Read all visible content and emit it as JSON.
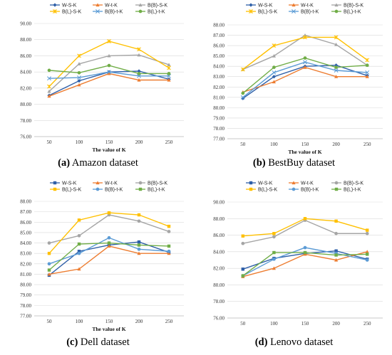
{
  "chart_data": [
    {
      "type": "line",
      "caption_label": "(a)",
      "caption_text": "Amazon dataset",
      "xlabel": "The value of K",
      "ylabel": "",
      "categories": [
        "50",
        "100",
        "150",
        "200",
        "250"
      ],
      "ylim": [
        76,
        90
      ],
      "yticks": [
        "76.00",
        "78.00",
        "80.00",
        "82.00",
        "84.00",
        "86.00",
        "88.00",
        "90.00"
      ],
      "legend_placement": "top",
      "grid": true,
      "series": [
        {
          "name": "W-S-K",
          "color": "#2e5fa8",
          "marker": "diamond",
          "values": [
            81.1,
            82.9,
            84.0,
            84.1,
            83.1
          ]
        },
        {
          "name": "W-t-K",
          "color": "#ed7d31",
          "marker": "triangle",
          "values": [
            81.0,
            82.4,
            83.8,
            83.0,
            83.0
          ]
        },
        {
          "name": "B(B)-S-K",
          "color": "#a5a5a5",
          "marker": "triangle",
          "values": [
            81.6,
            85.0,
            86.0,
            86.1,
            84.9
          ]
        },
        {
          "name": "B(L)-S-K",
          "color": "#ffc000",
          "marker": "star",
          "values": [
            82.2,
            86.0,
            87.8,
            86.8,
            84.5
          ]
        },
        {
          "name": "B(B)-t-K",
          "color": "#5b9bd5",
          "marker": "x",
          "values": [
            83.2,
            83.3,
            84.0,
            83.5,
            83.5
          ]
        },
        {
          "name": "B(L)-t-K",
          "color": "#70ad47",
          "marker": "circle",
          "values": [
            84.2,
            83.9,
            84.8,
            83.8,
            83.8
          ]
        }
      ]
    },
    {
      "type": "line",
      "caption_label": "(b)",
      "caption_text": "BestBuy dataset",
      "xlabel": "The value of K",
      "ylabel": "",
      "categories": [
        "50",
        "100",
        "150",
        "200",
        "250"
      ],
      "ylim": [
        77,
        88
      ],
      "yticks": [
        "77.00",
        "78.00",
        "79.00",
        "80.00",
        "81.00",
        "82.00",
        "83.00",
        "84.00",
        "85.00",
        "86.00",
        "87.00",
        "88.00"
      ],
      "legend_placement": "top",
      "grid": true,
      "series": [
        {
          "name": "W-S-K",
          "color": "#2e5fa8",
          "marker": "diamond",
          "values": [
            80.9,
            83.0,
            84.0,
            84.1,
            83.1
          ]
        },
        {
          "name": "W-t-K",
          "color": "#ed7d31",
          "marker": "triangle",
          "values": [
            81.5,
            82.5,
            83.9,
            83.0,
            83.0
          ]
        },
        {
          "name": "B(B)-S-K",
          "color": "#a5a5a5",
          "marker": "triangle",
          "values": [
            83.7,
            85.0,
            87.0,
            86.1,
            84.1
          ]
        },
        {
          "name": "B(L)-S-K",
          "color": "#ffc000",
          "marker": "star",
          "values": [
            83.7,
            86.0,
            86.8,
            86.8,
            84.6
          ]
        },
        {
          "name": "B(B)-t-K",
          "color": "#5b9bd5",
          "marker": "x",
          "values": [
            81.0,
            83.4,
            84.4,
            83.6,
            83.4
          ]
        },
        {
          "name": "B(L)-t-K",
          "color": "#70ad47",
          "marker": "circle",
          "values": [
            81.4,
            83.9,
            84.8,
            83.9,
            84.1
          ]
        }
      ]
    },
    {
      "type": "line",
      "caption_label": "(c)",
      "caption_text": "Dell dataset",
      "xlabel": "The value of K",
      "ylabel": "",
      "categories": [
        "50",
        "100",
        "150",
        "200",
        "250"
      ],
      "ylim": [
        77,
        88
      ],
      "yticks": [
        "77.00",
        "78.00",
        "79.00",
        "80.00",
        "81.00",
        "82.00",
        "83.00",
        "84.00",
        "85.00",
        "86.00",
        "87.00",
        "88.00"
      ],
      "legend_placement": "top",
      "grid": true,
      "series": [
        {
          "name": "W-S-K",
          "color": "#2e5fa8",
          "marker": "square",
          "values": [
            80.9,
            83.2,
            83.8,
            84.1,
            83.1
          ]
        },
        {
          "name": "W-t-K",
          "color": "#ed7d31",
          "marker": "triangle",
          "values": [
            81.0,
            81.5,
            83.7,
            83.0,
            83.0
          ]
        },
        {
          "name": "B(B)-S-K",
          "color": "#a5a5a5",
          "marker": "circle",
          "values": [
            84.0,
            84.7,
            86.7,
            86.1,
            85.1
          ]
        },
        {
          "name": "B(L)-S-K",
          "color": "#ffc000",
          "marker": "square",
          "values": [
            83.0,
            86.2,
            86.9,
            86.7,
            85.6
          ]
        },
        {
          "name": "B(B)-t-K",
          "color": "#5b9bd5",
          "marker": "circle",
          "values": [
            82.0,
            83.0,
            84.5,
            83.4,
            83.2
          ]
        },
        {
          "name": "B(L)-t-K",
          "color": "#70ad47",
          "marker": "square",
          "values": [
            81.4,
            83.9,
            84.0,
            83.8,
            83.7
          ]
        }
      ]
    },
    {
      "type": "line",
      "caption_label": "(d)",
      "caption_text": "Lenovo dataset",
      "xlabel": "",
      "ylabel": "",
      "categories": [
        "50",
        "100",
        "150",
        "200",
        "250"
      ],
      "ylim": [
        76,
        90
      ],
      "yticks": [
        "76.00",
        "78.00",
        "80.00",
        "82.00",
        "84.00",
        "86.00",
        "88.00",
        "90.00"
      ],
      "legend_placement": "top",
      "grid": true,
      "series": [
        {
          "name": "W-S-K",
          "color": "#2e5fa8",
          "marker": "square",
          "values": [
            81.9,
            83.2,
            83.8,
            84.1,
            83.1
          ]
        },
        {
          "name": "W-t-K",
          "color": "#ed7d31",
          "marker": "triangle",
          "values": [
            81.0,
            82.0,
            83.7,
            83.0,
            84.0
          ]
        },
        {
          "name": "B(B)-S-K",
          "color": "#a5a5a5",
          "marker": "circle",
          "values": [
            85.0,
            85.8,
            87.8,
            86.2,
            86.2
          ]
        },
        {
          "name": "B(L)-S-K",
          "color": "#ffc000",
          "marker": "square",
          "values": [
            85.9,
            86.2,
            88.0,
            87.7,
            86.6
          ]
        },
        {
          "name": "B(B)-t-K",
          "color": "#5b9bd5",
          "marker": "circle",
          "values": [
            81.1,
            83.1,
            84.5,
            83.8,
            83.0
          ]
        },
        {
          "name": "B(L)-t-K",
          "color": "#70ad47",
          "marker": "square",
          "values": [
            81.1,
            83.9,
            83.9,
            83.6,
            83.7
          ]
        }
      ]
    }
  ]
}
